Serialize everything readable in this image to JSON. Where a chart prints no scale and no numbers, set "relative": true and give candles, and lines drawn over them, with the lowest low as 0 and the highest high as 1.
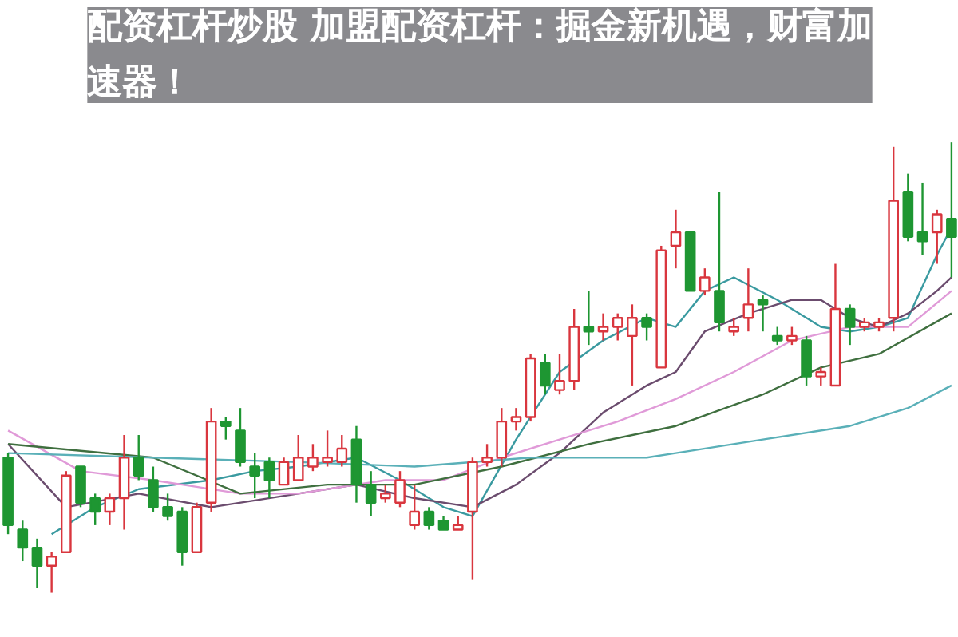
{
  "chart_data": {
    "type": "candlestick",
    "relative": true,
    "title": "配资杠杆炒股 加盟配资杠杆：掘金新机遇，财富加速器！",
    "categories": [
      null,
      null,
      null,
      null,
      null,
      null,
      null,
      null,
      null,
      null,
      null,
      null,
      null,
      null,
      null,
      null,
      null,
      null,
      null,
      null,
      null,
      null,
      null,
      null,
      null,
      null,
      null,
      null,
      null,
      null,
      null,
      null,
      null,
      null,
      null,
      null,
      null,
      null,
      null,
      null,
      null,
      null,
      null,
      null,
      null,
      null,
      null,
      null,
      null,
      null,
      null,
      null,
      null,
      null,
      null,
      null,
      null,
      null,
      null,
      null,
      null,
      null,
      null,
      null,
      null,
      null
    ],
    "ohlc": [
      [
        0.3,
        0.31,
        0.13,
        0.15
      ],
      [
        0.14,
        0.16,
        0.07,
        0.1
      ],
      [
        0.1,
        0.12,
        0.01,
        0.06
      ],
      [
        0.06,
        0.09,
        0.0,
        0.08
      ],
      [
        0.09,
        0.27,
        0.09,
        0.26
      ],
      [
        0.28,
        0.28,
        0.19,
        0.2
      ],
      [
        0.21,
        0.22,
        0.15,
        0.18
      ],
      [
        0.18,
        0.22,
        0.15,
        0.21
      ],
      [
        0.21,
        0.35,
        0.14,
        0.3
      ],
      [
        0.3,
        0.35,
        0.25,
        0.26
      ],
      [
        0.25,
        0.28,
        0.18,
        0.19
      ],
      [
        0.19,
        0.22,
        0.16,
        0.17
      ],
      [
        0.18,
        0.19,
        0.06,
        0.09
      ],
      [
        0.09,
        0.2,
        0.09,
        0.19
      ],
      [
        0.2,
        0.41,
        0.18,
        0.38
      ],
      [
        0.38,
        0.39,
        0.34,
        0.37
      ],
      [
        0.36,
        0.41,
        0.28,
        0.29
      ],
      [
        0.28,
        0.31,
        0.21,
        0.26
      ],
      [
        0.29,
        0.3,
        0.21,
        0.25
      ],
      [
        0.24,
        0.3,
        0.24,
        0.29
      ],
      [
        0.25,
        0.35,
        0.25,
        0.3
      ],
      [
        0.28,
        0.33,
        0.27,
        0.3
      ],
      [
        0.29,
        0.36,
        0.28,
        0.3
      ],
      [
        0.29,
        0.35,
        0.28,
        0.32
      ],
      [
        0.34,
        0.37,
        0.2,
        0.24
      ],
      [
        0.24,
        0.27,
        0.17,
        0.2
      ],
      [
        0.21,
        0.24,
        0.2,
        0.22
      ],
      [
        0.2,
        0.27,
        0.19,
        0.25
      ],
      [
        0.15,
        0.24,
        0.14,
        0.18
      ],
      [
        0.18,
        0.19,
        0.14,
        0.15
      ],
      [
        0.16,
        0.17,
        0.14,
        0.14
      ],
      [
        0.14,
        0.17,
        0.14,
        0.15
      ],
      [
        0.18,
        0.3,
        0.03,
        0.29
      ],
      [
        0.29,
        0.33,
        0.28,
        0.3
      ],
      [
        0.3,
        0.41,
        0.28,
        0.38
      ],
      [
        0.38,
        0.41,
        0.36,
        0.39
      ],
      [
        0.39,
        0.53,
        0.38,
        0.52
      ],
      [
        0.51,
        0.53,
        0.44,
        0.46
      ],
      [
        0.45,
        0.53,
        0.44,
        0.47
      ],
      [
        0.47,
        0.63,
        0.45,
        0.59
      ],
      [
        0.59,
        0.67,
        0.55,
        0.58
      ],
      [
        0.58,
        0.62,
        0.56,
        0.59
      ],
      [
        0.59,
        0.62,
        0.56,
        0.61
      ],
      [
        0.57,
        0.64,
        0.46,
        0.61
      ],
      [
        0.61,
        0.62,
        0.56,
        0.59
      ],
      [
        0.5,
        0.77,
        0.5,
        0.76
      ],
      [
        0.77,
        0.85,
        0.72,
        0.8
      ],
      [
        0.8,
        0.8,
        0.67,
        0.67
      ],
      [
        0.67,
        0.72,
        0.66,
        0.7
      ],
      [
        0.67,
        0.89,
        0.58,
        0.6
      ],
      [
        0.58,
        0.61,
        0.57,
        0.59
      ],
      [
        0.61,
        0.72,
        0.58,
        0.64
      ],
      [
        0.65,
        0.66,
        0.58,
        0.64
      ],
      [
        0.57,
        0.59,
        0.55,
        0.56
      ],
      [
        0.56,
        0.59,
        0.55,
        0.57
      ],
      [
        0.56,
        0.57,
        0.46,
        0.48
      ],
      [
        0.48,
        0.5,
        0.46,
        0.49
      ],
      [
        0.46,
        0.73,
        0.46,
        0.63
      ],
      [
        0.63,
        0.64,
        0.55,
        0.59
      ],
      [
        0.59,
        0.61,
        0.58,
        0.6
      ],
      [
        0.59,
        0.61,
        0.58,
        0.6
      ],
      [
        0.61,
        0.99,
        0.58,
        0.87
      ],
      [
        0.89,
        0.93,
        0.78,
        0.79
      ],
      [
        0.8,
        0.91,
        0.75,
        0.78
      ],
      [
        0.8,
        0.85,
        0.73,
        0.84
      ],
      [
        0.83,
        1.0,
        0.7,
        0.79
      ]
    ],
    "colors": [
      "#1e9632",
      "#1e9632",
      "#1e9632",
      "#d9363e",
      "#d9363e",
      "#1e9632",
      "#1e9632",
      "#d9363e",
      "#d9363e",
      "#1e9632",
      "#1e9632",
      "#1e9632",
      "#1e9632",
      "#d9363e",
      "#d9363e",
      "#1e9632",
      "#1e9632",
      "#1e9632",
      "#1e9632",
      "#d9363e",
      "#d9363e",
      "#d9363e",
      "#d9363e",
      "#d9363e",
      "#1e9632",
      "#1e9632",
      "#d9363e",
      "#d9363e",
      "#d9363e",
      "#1e9632",
      "#1e9632",
      "#d9363e",
      "#d9363e",
      "#d9363e",
      "#d9363e",
      "#d9363e",
      "#d9363e",
      "#1e9632",
      "#d9363e",
      "#d9363e",
      "#1e9632",
      "#d9363e",
      "#d9363e",
      "#d9363e",
      "#1e9632",
      "#d9363e",
      "#d9363e",
      "#1e9632",
      "#d9363e",
      "#1e9632",
      "#d9363e",
      "#d9363e",
      "#1e9632",
      "#1e9632",
      "#d9363e",
      "#1e9632",
      "#d9363e",
      "#d9363e",
      "#1e9632",
      "#d9363e",
      "#d9363e",
      "#d9363e",
      "#1e9632",
      "#1e9632",
      "#d9363e",
      "#1e9632"
    ],
    "series": [
      {
        "type": "line",
        "color": "#3a9aa0",
        "values": [
          null,
          null,
          null,
          0.13,
          null,
          null,
          0.19,
          null,
          null,
          0.23,
          null,
          null,
          null,
          null,
          0.25,
          null,
          null,
          0.27,
          null,
          null,
          0.28,
          null,
          null,
          null,
          0.3,
          null,
          null,
          0.25,
          null,
          null,
          0.19,
          null,
          0.17,
          null,
          null,
          0.34,
          null,
          null,
          0.49,
          null,
          null,
          0.56,
          null,
          null,
          0.61,
          null,
          0.59,
          null,
          0.67,
          null,
          0.7,
          null,
          null,
          0.65,
          null,
          null,
          0.59,
          null,
          0.58,
          null,
          0.59,
          null,
          0.61,
          null,
          0.75,
          0.81
        ]
      },
      {
        "type": "line",
        "color": "#6b4c6e",
        "values": [
          0.33,
          null,
          null,
          null,
          0.19,
          null,
          null,
          null,
          null,
          0.22,
          null,
          null,
          null,
          null,
          0.19,
          null,
          null,
          null,
          null,
          null,
          0.22,
          null,
          null,
          null,
          0.24,
          null,
          null,
          null,
          0.21,
          null,
          null,
          null,
          0.19,
          null,
          null,
          0.24,
          null,
          null,
          0.31,
          null,
          null,
          0.4,
          null,
          null,
          0.46,
          null,
          0.49,
          null,
          0.58,
          null,
          null,
          0.62,
          null,
          null,
          0.65,
          null,
          0.65,
          null,
          0.61,
          null,
          0.59,
          null,
          0.62,
          null,
          0.67,
          0.7
        ]
      },
      {
        "type": "line",
        "color": "#e09ad8",
        "values": [
          0.36,
          null,
          null,
          null,
          null,
          0.27,
          null,
          null,
          null,
          null,
          0.25,
          null,
          null,
          null,
          null,
          null,
          0.22,
          null,
          null,
          null,
          0.22,
          null,
          null,
          null,
          null,
          null,
          0.25,
          null,
          null,
          null,
          0.25,
          null,
          null,
          null,
          0.3,
          null,
          null,
          null,
          0.34,
          null,
          null,
          null,
          0.38,
          null,
          null,
          null,
          0.43,
          null,
          null,
          null,
          0.49,
          null,
          null,
          null,
          0.56,
          null,
          null,
          null,
          0.59,
          null,
          null,
          null,
          0.59,
          null,
          null,
          0.67
        ]
      },
      {
        "type": "line",
        "color": "#3f6f3f",
        "values": [
          0.33,
          null,
          null,
          null,
          null,
          null,
          null,
          null,
          null,
          null,
          0.3,
          null,
          null,
          null,
          null,
          null,
          0.22,
          null,
          null,
          null,
          null,
          null,
          0.24,
          null,
          null,
          null,
          null,
          null,
          0.24,
          null,
          null,
          null,
          null,
          null,
          0.28,
          null,
          null,
          null,
          null,
          null,
          0.33,
          null,
          null,
          null,
          null,
          null,
          0.37,
          null,
          null,
          null,
          null,
          null,
          0.44,
          null,
          null,
          null,
          0.5,
          null,
          null,
          null,
          0.53,
          null,
          null,
          null,
          null,
          0.62
        ]
      },
      {
        "type": "line",
        "color": "#5ab0b8",
        "values": [
          0.31,
          null,
          null,
          null,
          null,
          null,
          null,
          null,
          null,
          null,
          0.3,
          null,
          null,
          null,
          null,
          null,
          null,
          null,
          null,
          null,
          0.29,
          null,
          null,
          null,
          null,
          null,
          null,
          null,
          0.28,
          null,
          null,
          null,
          null,
          null,
          null,
          null,
          0.3,
          null,
          null,
          null,
          null,
          null,
          null,
          null,
          0.3,
          null,
          0.31,
          null,
          null,
          null,
          null,
          null,
          0.34,
          null,
          null,
          null,
          null,
          null,
          0.37,
          null,
          null,
          null,
          0.41,
          null,
          null,
          0.46
        ]
      }
    ]
  }
}
